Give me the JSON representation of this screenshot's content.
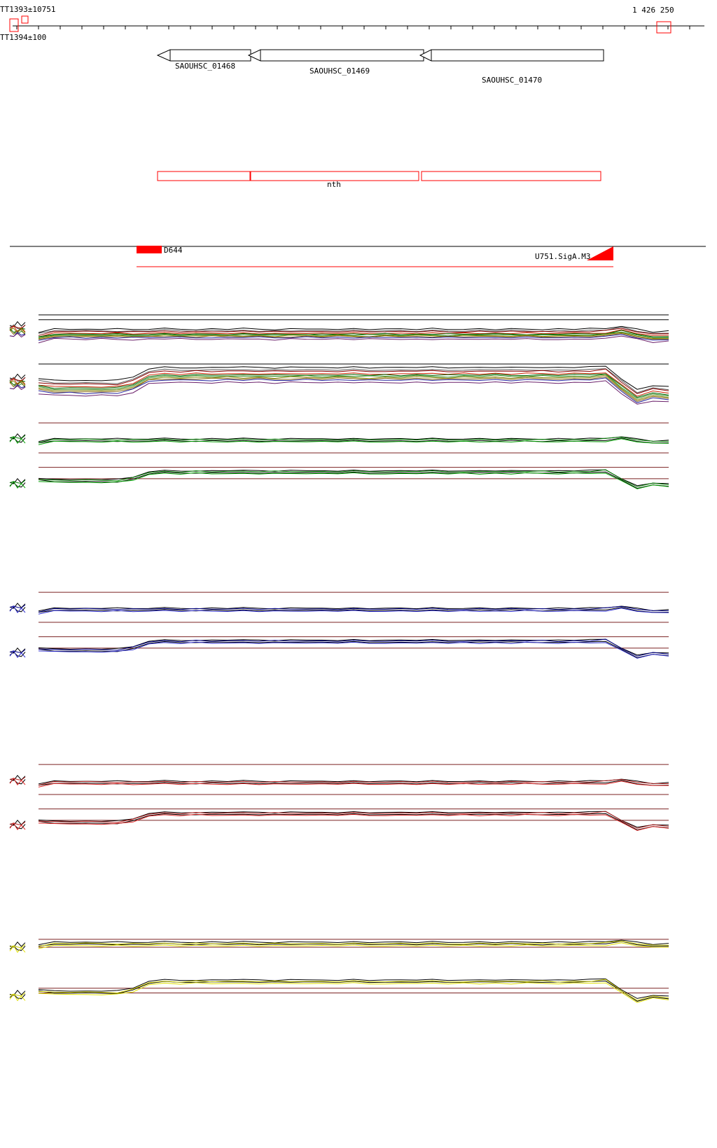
{
  "header": {
    "left_label_top": "TT1393±10751",
    "left_label_bottom": "TT1394±100",
    "right_coordinate": "1 426 250"
  },
  "genes": [
    {
      "label": "SAOUHSC_01468"
    },
    {
      "label": "SAOUHSC_01469"
    },
    {
      "label": "SAOUHSC_01470"
    }
  ],
  "operon": {
    "label": "nth"
  },
  "annotations": {
    "tss": "D644",
    "terminator": "U751.SigA.M3"
  },
  "palette": {
    "annotation_red": "#ff0000",
    "refline": "#7b2222",
    "gene_outline": "#000000",
    "ruler": "#000000"
  },
  "chart_data": {
    "type": "line",
    "title": "Genomic expression profile tracks around nth operon (SAOUHSC_01468-01470)",
    "x_range_label_right": "1 426 250",
    "legend_position": "none",
    "grid": false,
    "profiles": {
      "flat": [
        0.25,
        0.5,
        0.52,
        0.48,
        0.51,
        0.49,
        0.47,
        0.5,
        0.53,
        0.5,
        0.48,
        0.51,
        0.49,
        0.52,
        0.5,
        0.47,
        0.5,
        0.52,
        0.49,
        0.51,
        0.5,
        0.48,
        0.52,
        0.5,
        0.49,
        0.51,
        0.48,
        0.5,
        0.52,
        0.49,
        0.51,
        0.5,
        0.48,
        0.51,
        0.49,
        0.52,
        0.55,
        0.75,
        0.5,
        0.28,
        0.35
      ],
      "step": [
        0.2,
        0.05,
        0.08,
        0.04,
        0.07,
        0.05,
        0.3,
        0.9,
        1.0,
        0.97,
        1.0,
        0.98,
        1.02,
        0.99,
        1.01,
        0.97,
        1.0,
        1.02,
        0.98,
        1.0,
        1.01,
        0.97,
        1.0,
        0.98,
        1.02,
        1.0,
        0.97,
        1.01,
        0.99,
        1.02,
        0.98,
        1.0,
        1.01,
        0.98,
        1.0,
        1.02,
        1.1,
        0.2,
        -0.6,
        -0.3,
        -0.4
      ]
    },
    "noise": [
      0.2,
      -0.3,
      0.5,
      -0.1,
      0.4,
      -0.5,
      0.1,
      0.3,
      -0.4,
      0.2,
      0.5,
      -0.2,
      0.3,
      -0.5,
      0.1,
      0.4,
      -0.3,
      0.2,
      -0.1,
      0.5,
      -0.4,
      0.3,
      0.1,
      -0.2,
      0.4,
      -0.5,
      0.2,
      0.3,
      -0.1,
      0.5,
      -0.3,
      0.1,
      0.4,
      -0.2,
      0.3,
      -0.4,
      0.2,
      0.5,
      -0.1,
      0.3,
      -0.2
    ],
    "tracks": [
      {
        "name": "all-conditions-upper",
        "profile": "flat",
        "series": [
          {
            "color": "#000000",
            "offset": -6,
            "jitter": 2
          },
          {
            "color": "#5a5a5a",
            "offset": -4,
            "jitter": 2
          },
          {
            "color": "#8b0000",
            "offset": -3,
            "jitter": 2
          },
          {
            "color": "#cc2200",
            "offset": -1,
            "jitter": 2
          },
          {
            "color": "#006400",
            "offset": 0,
            "jitter": 2
          },
          {
            "color": "#2e8b22",
            "offset": 1,
            "jitter": 2
          },
          {
            "color": "#808000",
            "offset": 2,
            "jitter": 2
          },
          {
            "color": "#8b6914",
            "offset": 3,
            "jitter": 2
          },
          {
            "color": "#26269f",
            "offset": 4,
            "jitter": 2
          },
          {
            "color": "#6a1f6a",
            "offset": 6,
            "jitter": 2
          }
        ]
      },
      {
        "name": "all-conditions-lower",
        "profile": "step",
        "series": [
          {
            "color": "#000000",
            "offset": -6,
            "jitter": 2
          },
          {
            "color": "#5a5a5a",
            "offset": -4,
            "jitter": 2
          },
          {
            "color": "#8b0000",
            "offset": -3,
            "jitter": 2
          },
          {
            "color": "#cc2200",
            "offset": -1,
            "jitter": 2
          },
          {
            "color": "#006400",
            "offset": 0,
            "jitter": 2
          },
          {
            "color": "#2e8b22",
            "offset": 1,
            "jitter": 2
          },
          {
            "color": "#808000",
            "offset": 2,
            "jitter": 2
          },
          {
            "color": "#8b6914",
            "offset": 3,
            "jitter": 2
          },
          {
            "color": "#26269f",
            "offset": 4,
            "jitter": 2
          },
          {
            "color": "#6a1f6a",
            "offset": 6,
            "jitter": 2
          }
        ]
      },
      {
        "name": "condition-green-upper",
        "profile": "flat",
        "series": [
          {
            "color": "#000000",
            "offset": -2,
            "jitter": 1.6
          },
          {
            "color": "#000000",
            "offset": 1,
            "jitter": 1.6
          },
          {
            "color": "#007f00",
            "offset": -1,
            "jitter": 2
          },
          {
            "color": "#00a000",
            "offset": 2,
            "jitter": 2
          }
        ]
      },
      {
        "name": "condition-green-lower",
        "profile": "step",
        "series": [
          {
            "color": "#000000",
            "offset": -2,
            "jitter": 1.6
          },
          {
            "color": "#000000",
            "offset": 1,
            "jitter": 1.6
          },
          {
            "color": "#007f00",
            "offset": -1,
            "jitter": 2
          },
          {
            "color": "#00a000",
            "offset": 2,
            "jitter": 2
          }
        ]
      },
      {
        "name": "condition-blue-upper",
        "profile": "flat",
        "series": [
          {
            "color": "#000000",
            "offset": -2,
            "jitter": 1.6
          },
          {
            "color": "#000000",
            "offset": 1,
            "jitter": 1.6
          },
          {
            "color": "#00008b",
            "offset": -1,
            "jitter": 2
          },
          {
            "color": "#2929cc",
            "offset": 2,
            "jitter": 2
          }
        ]
      },
      {
        "name": "condition-blue-lower",
        "profile": "step",
        "series": [
          {
            "color": "#000000",
            "offset": -2,
            "jitter": 1.6
          },
          {
            "color": "#000000",
            "offset": 1,
            "jitter": 1.6
          },
          {
            "color": "#00008b",
            "offset": -1,
            "jitter": 2
          },
          {
            "color": "#2929cc",
            "offset": 2,
            "jitter": 2
          }
        ]
      },
      {
        "name": "condition-red-upper",
        "profile": "flat",
        "series": [
          {
            "color": "#000000",
            "offset": -2,
            "jitter": 1.6
          },
          {
            "color": "#000000",
            "offset": 1,
            "jitter": 1.6
          },
          {
            "color": "#b22222",
            "offset": -1,
            "jitter": 2
          },
          {
            "color": "#dd2222",
            "offset": 2,
            "jitter": 2
          }
        ]
      },
      {
        "name": "condition-red-lower",
        "profile": "step",
        "series": [
          {
            "color": "#000000",
            "offset": -2,
            "jitter": 1.6
          },
          {
            "color": "#000000",
            "offset": 1,
            "jitter": 1.6
          },
          {
            "color": "#b22222",
            "offset": -1,
            "jitter": 2
          },
          {
            "color": "#dd2222",
            "offset": 2,
            "jitter": 2
          }
        ]
      },
      {
        "name": "condition-yellow-upper",
        "profile": "flat",
        "series": [
          {
            "color": "#000000",
            "offset": -2,
            "jitter": 1.6
          },
          {
            "color": "#000000",
            "offset": 1,
            "jitter": 1.6
          },
          {
            "color": "#cccc00",
            "offset": 0,
            "jitter": 2
          },
          {
            "color": "#e0e000",
            "offset": 3,
            "jitter": 2
          }
        ]
      },
      {
        "name": "condition-yellow-lower",
        "profile": "step",
        "series": [
          {
            "color": "#000000",
            "offset": -2,
            "jitter": 1.6
          },
          {
            "color": "#000000",
            "offset": 1,
            "jitter": 1.6
          },
          {
            "color": "#cccc00",
            "offset": 0,
            "jitter": 2
          },
          {
            "color": "#e0e000",
            "offset": 3,
            "jitter": 2
          }
        ]
      }
    ]
  }
}
